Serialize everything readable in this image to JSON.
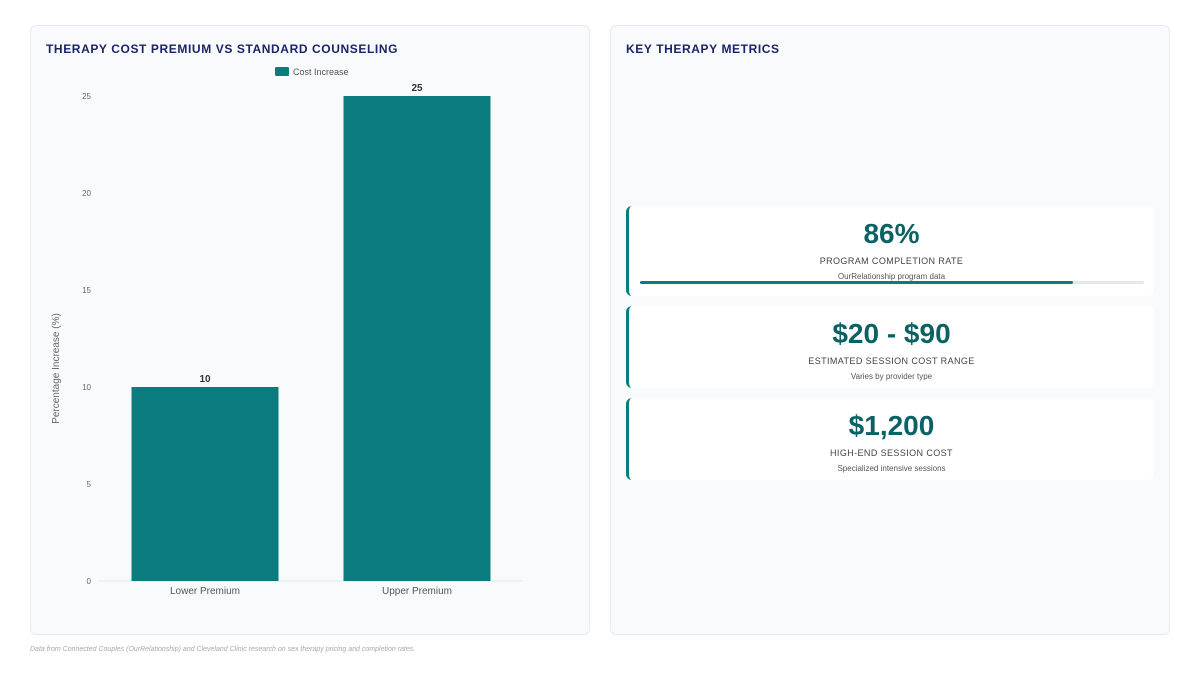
{
  "left_panel": {
    "title": "THERAPY COST PREMIUM VS STANDARD COUNSELING"
  },
  "chart_data": {
    "type": "bar",
    "categories": [
      "Lower Premium",
      "Upper Premium"
    ],
    "series": [
      {
        "name": "Cost Increase",
        "values": [
          10,
          25
        ]
      }
    ],
    "data_labels": [
      "10",
      "25"
    ],
    "ylabel": "Percentage Increase (%)",
    "xlabel": "",
    "ylim": [
      0,
      25
    ],
    "yticks": [
      0,
      5,
      10,
      15,
      20,
      25
    ],
    "legend_position": "top",
    "grid": false,
    "colors": {
      "bar": "#0b7c7e"
    }
  },
  "right_panel": {
    "title": "KEY THERAPY METRICS",
    "metrics": [
      {
        "value": "86%",
        "label": "PROGRAM COMPLETION RATE",
        "sub": "OurRelationship program data",
        "progress": 0.86
      },
      {
        "value": "$20 - $90",
        "label": "ESTIMATED SESSION COST RANGE",
        "sub": "Varies by provider type"
      },
      {
        "value": "$1,200",
        "label": "HIGH-END SESSION COST",
        "sub": "Specialized intensive sessions"
      }
    ]
  },
  "footnote": "Data from Connected Couples (OurRelationship) and Cleveland Clinic research on sex therapy pricing and completion rates.",
  "colors": {
    "accent": "#0b7c7e",
    "value_text": "#0b6264",
    "title_text": "#1a2466"
  }
}
